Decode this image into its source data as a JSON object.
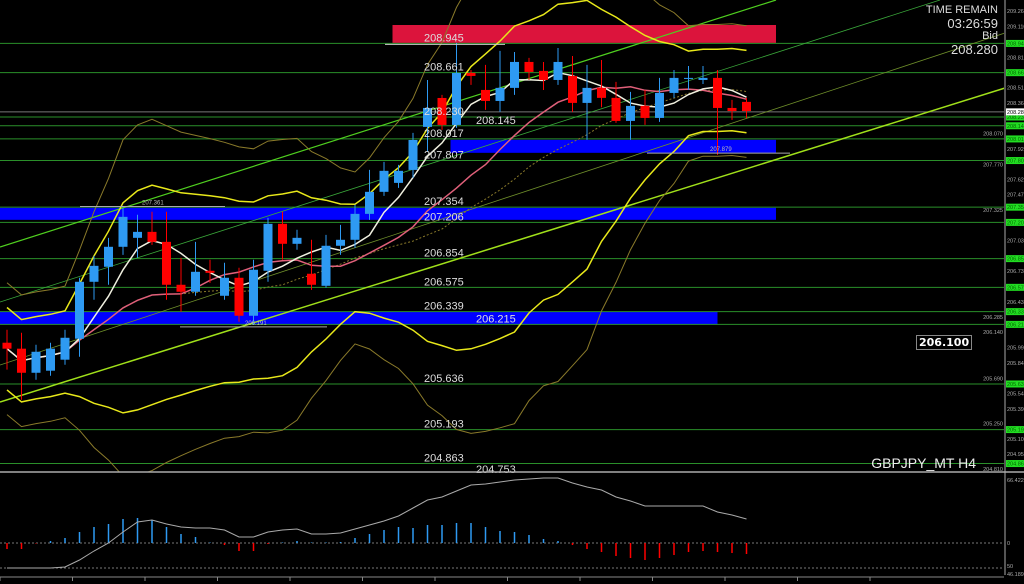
{
  "header": {
    "time_remain_label": "TIME REMAIN",
    "time_remain_value": "03:26:59",
    "bid_label": "Bid",
    "bid_value": "208.280",
    "symbol": "GBPJPY_MT H4",
    "price_box": "206.100"
  },
  "colors": {
    "background": "#000000",
    "bull": "#2e9af2",
    "bear": "#ff0000",
    "level_line": "#2a8f2a",
    "level_tag": "#22dd22",
    "supply_zone": "#dc143c",
    "demand_zone": "#0000ff",
    "fast_ma": "#f0f0e0",
    "slow_ma": "#e0607a",
    "inner_band": "#e8e81a",
    "outer_band": "#8a7a2a"
  },
  "chart_data": {
    "type": "candlestick",
    "title": "",
    "symbol": "GBPJPY_MT",
    "timeframe": "H4",
    "ylim": [
      204.81,
      209.26
    ],
    "y_ticks": [
      "209.260",
      "209.110",
      "208.810",
      "208.515",
      "208.365",
      "208.070",
      "207.920",
      "207.770",
      "207.625",
      "207.475",
      "207.325",
      "207.030",
      "206.735",
      "206.435",
      "206.285",
      "206.140",
      "205.990",
      "205.840",
      "205.690",
      "205.545",
      "205.395",
      "205.250",
      "205.100",
      "204.955",
      "204.810"
    ],
    "candles": [
      [
        206.037,
        206.163,
        205.775,
        205.979
      ],
      [
        205.979,
        206.134,
        205.483,
        205.745
      ],
      [
        205.745,
        206.017,
        205.677,
        205.949
      ],
      [
        205.765,
        206.037,
        205.716,
        205.979
      ],
      [
        205.872,
        206.163,
        205.823,
        206.085
      ],
      [
        206.076,
        206.668,
        205.901,
        206.629
      ],
      [
        206.629,
        206.881,
        206.454,
        206.784
      ],
      [
        206.775,
        207.056,
        206.6,
        206.969
      ],
      [
        206.969,
        207.348,
        206.891,
        207.26
      ],
      [
        207.056,
        207.28,
        206.862,
        207.114
      ],
      [
        207.114,
        207.309,
        206.988,
        207.017
      ],
      [
        207.017,
        207.309,
        206.454,
        206.6
      ],
      [
        206.6,
        206.862,
        206.338,
        206.532
      ],
      [
        206.532,
        207.017,
        206.493,
        206.726
      ],
      [
        206.736,
        206.843,
        206.619,
        206.716
      ],
      [
        206.493,
        206.814,
        206.454,
        206.668
      ],
      [
        206.668,
        206.765,
        206.241,
        206.299
      ],
      [
        206.299,
        206.843,
        206.211,
        206.746
      ],
      [
        206.736,
        207.25,
        206.629,
        207.192
      ],
      [
        207.192,
        207.309,
        206.843,
        206.998
      ],
      [
        206.998,
        207.134,
        206.94,
        207.056
      ],
      [
        206.707,
        207.037,
        206.551,
        206.6
      ],
      [
        206.59,
        207.085,
        206.571,
        206.979
      ],
      [
        206.979,
        207.182,
        206.891,
        207.037
      ],
      [
        207.037,
        207.377,
        206.959,
        207.289
      ],
      [
        207.289,
        207.716,
        207.231,
        207.503
      ],
      [
        207.503,
        207.794,
        207.464,
        207.707
      ],
      [
        207.59,
        207.765,
        207.542,
        207.707
      ],
      [
        207.716,
        208.076,
        207.639,
        208.007
      ],
      [
        208.134,
        208.59,
        207.891,
        208.318
      ],
      [
        208.415,
        208.445,
        208.105,
        208.153
      ],
      [
        208.153,
        208.95,
        208.124,
        208.658
      ],
      [
        208.658,
        208.687,
        208.542,
        208.629
      ],
      [
        208.493,
        208.736,
        208.299,
        208.386
      ],
      [
        208.386,
        208.872,
        208.28,
        208.513
      ],
      [
        208.513,
        208.862,
        208.445,
        208.765
      ],
      [
        208.765,
        208.804,
        208.59,
        208.668
      ],
      [
        208.678,
        208.765,
        208.493,
        208.59
      ],
      [
        208.59,
        208.901,
        208.542,
        208.765
      ],
      [
        208.629,
        208.823,
        208.28,
        208.367
      ],
      [
        208.367,
        208.736,
        208.008,
        208.513
      ],
      [
        208.513,
        208.784,
        208.325,
        208.416
      ],
      [
        208.416,
        208.571,
        208.173,
        208.192
      ],
      [
        208.192,
        208.474,
        208.008,
        208.338
      ],
      [
        208.338,
        208.493,
        208.153,
        208.221
      ],
      [
        208.221,
        208.61,
        208.183,
        208.464
      ],
      [
        208.464,
        208.687,
        208.416,
        208.61
      ],
      [
        208.6,
        208.726,
        208.493,
        208.61
      ],
      [
        208.59,
        208.726,
        208.551,
        208.61
      ],
      [
        208.61,
        208.687,
        207.862,
        208.318
      ],
      [
        208.318,
        208.396,
        208.202,
        208.288
      ],
      [
        208.377,
        208.416,
        208.22,
        208.288
      ]
    ],
    "levels": [
      {
        "price": 208.945,
        "label": "208.945"
      },
      {
        "price": 208.661,
        "label": "208.661"
      },
      {
        "price": 208.23,
        "label": "208.230"
      },
      {
        "price": 208.145,
        "label": "208.145"
      },
      {
        "price": 208.017,
        "label": "208.017"
      },
      {
        "price": 207.807,
        "label": "207.807"
      },
      {
        "price": 207.354,
        "label": "207.354"
      },
      {
        "price": 207.206,
        "label": "207.206"
      },
      {
        "price": 206.854,
        "label": "206.854"
      },
      {
        "price": 206.575,
        "label": "206.575"
      },
      {
        "price": 206.339,
        "label": "206.339"
      },
      {
        "price": 206.215,
        "label": "206.215"
      },
      {
        "price": 205.636,
        "label": "205.636"
      },
      {
        "price": 205.193,
        "label": "205.193"
      },
      {
        "price": 204.863,
        "label": "204.863"
      },
      {
        "price": 204.753,
        "label": "204.753"
      }
    ],
    "zones": [
      {
        "kind": "supply",
        "top": 209.124,
        "bottom": 208.95,
        "from_candle": 27,
        "extends_to": "axis"
      },
      {
        "kind": "demand",
        "top": 208.008,
        "bottom": 207.882,
        "from_candle": 31,
        "extends_to": "axis"
      },
      {
        "kind": "demand",
        "top": 207.348,
        "bottom": 207.231,
        "from_candle": 0,
        "extends_to": "axis"
      },
      {
        "kind": "demand",
        "top": 206.338,
        "bottom": 206.211,
        "from_candle": 0,
        "to_candle": 49
      }
    ],
    "annotations": [
      {
        "price": 207.361,
        "label": "207.361"
      },
      {
        "price": 206.191,
        "label": "206.191"
      },
      {
        "price": 207.879,
        "label": "207.879"
      }
    ],
    "bid_line": 208.28,
    "indicator": {
      "top_label": "66.4226",
      "zero_label": "0",
      "lower_label": "50",
      "bottom_label": "46.1890",
      "histogram": [
        -12,
        -12,
        -1,
        4,
        10,
        22,
        32,
        38,
        48,
        50,
        46,
        32,
        18,
        12,
        1,
        -4,
        -16,
        -16,
        -2,
        1,
        4,
        1,
        1,
        2,
        10,
        18,
        26,
        32,
        30,
        36,
        36,
        40,
        40,
        32,
        24,
        22,
        16,
        8,
        4,
        -4,
        -12,
        -18,
        -26,
        -30,
        -34,
        -30,
        -24,
        -18,
        -16,
        -18,
        -20,
        -22
      ],
      "signal": [
        -50,
        -50,
        -50,
        -50,
        -48,
        -34,
        -16,
        0,
        22,
        42,
        46,
        38,
        32,
        30,
        30,
        26,
        12,
        12,
        22,
        26,
        28,
        18,
        18,
        20,
        28,
        36,
        44,
        54,
        70,
        86,
        92,
        104,
        116,
        118,
        122,
        126,
        128,
        130,
        130,
        120,
        112,
        106,
        92,
        84,
        74,
        74,
        74,
        74,
        74,
        62,
        56,
        48
      ]
    }
  }
}
